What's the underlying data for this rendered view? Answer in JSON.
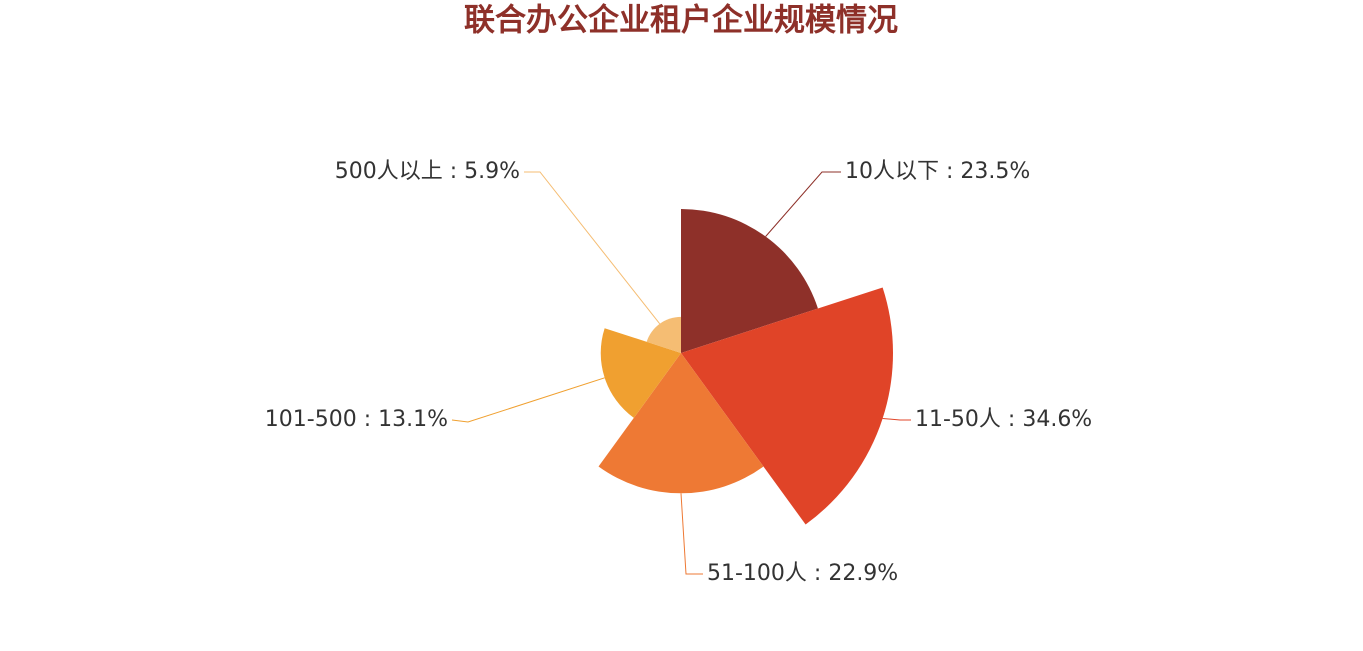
{
  "chart_data": {
    "type": "rose",
    "title": "联合办公企业租户企业规模情况",
    "values": [
      23.5,
      34.6,
      22.9,
      13.1,
      5.9
    ],
    "value_labels": [
      "10人以下 : 23.5%",
      "11-50人 : 34.6%",
      "51-100人 : 22.9%",
      "101-500 : 13.1%",
      "500人以上 : 5.9%"
    ],
    "colors": [
      "#8e3029",
      "#e04428",
      "#ee7934",
      "#f0a030",
      "#f5bd73"
    ]
  }
}
